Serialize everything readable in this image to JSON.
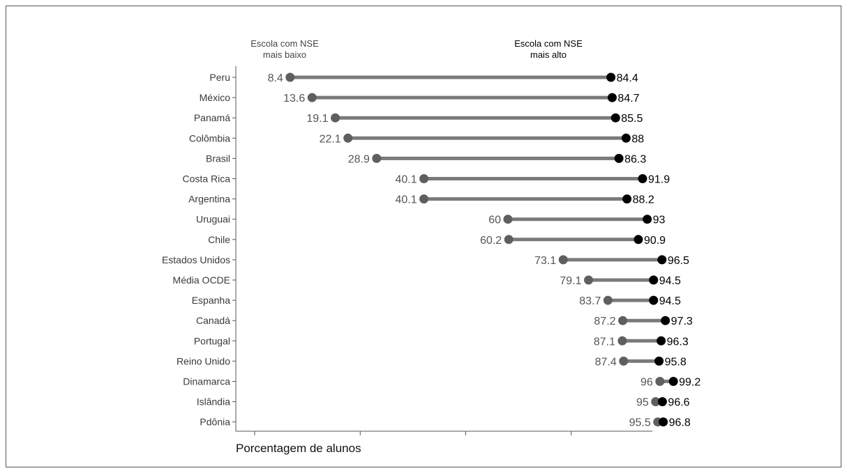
{
  "chart_data": {
    "type": "dumbbell",
    "xlabel": "Porcentagem de alunos",
    "legend": {
      "low": "Escola com NSE\nmais baixo",
      "high": "Escola com NSE\nmais alto"
    },
    "colors": {
      "low": "#5f5f5f",
      "high": "#000000",
      "bar": "#7a7a7a"
    },
    "xlim": [
      0,
      100
    ],
    "categories": [
      "Peru",
      "México",
      "Panamá",
      "Colômbia",
      "Brasil",
      "Costa Rica",
      "Argentina",
      "Uruguai",
      "Chile",
      "Estados Unidos",
      "Média OCDE",
      "Espanha",
      "Canadá",
      "Portugal",
      "Reino Unido",
      "Dinamarca",
      "Islândia",
      "Pdônia"
    ],
    "series": [
      {
        "name": "Escola com NSE mais baixo",
        "values": [
          8.4,
          13.6,
          19.1,
          22.1,
          28.9,
          40.1,
          40.1,
          60,
          60.2,
          73.1,
          79.1,
          83.7,
          87.2,
          87.1,
          87.4,
          96,
          95,
          95.5
        ]
      },
      {
        "name": "Escola com NSE mais alto",
        "values": [
          84.4,
          84.7,
          85.5,
          88,
          86.3,
          91.9,
          88.2,
          93,
          90.9,
          96.5,
          94.5,
          94.5,
          97.3,
          96.3,
          95.8,
          99.2,
          96.6,
          96.8
        ]
      }
    ],
    "low_labels": [
      "8.4",
      "13.6",
      "19.1",
      "22.1",
      "28.9",
      "40.1",
      "40.1",
      "60",
      "60.2",
      "73.1",
      "79.1",
      "83.7",
      "87.2",
      "87.1",
      "87.4",
      "96",
      "95",
      "95.5"
    ],
    "high_labels": [
      "84.4",
      "84.7",
      "85.5",
      "88",
      "86.3",
      "91.9",
      "88.2",
      "93",
      "90.9",
      "96.5",
      "94.5",
      "94.5",
      "97.3",
      "96.3",
      "95.8",
      "99.2",
      "96.6",
      "96.8"
    ]
  }
}
